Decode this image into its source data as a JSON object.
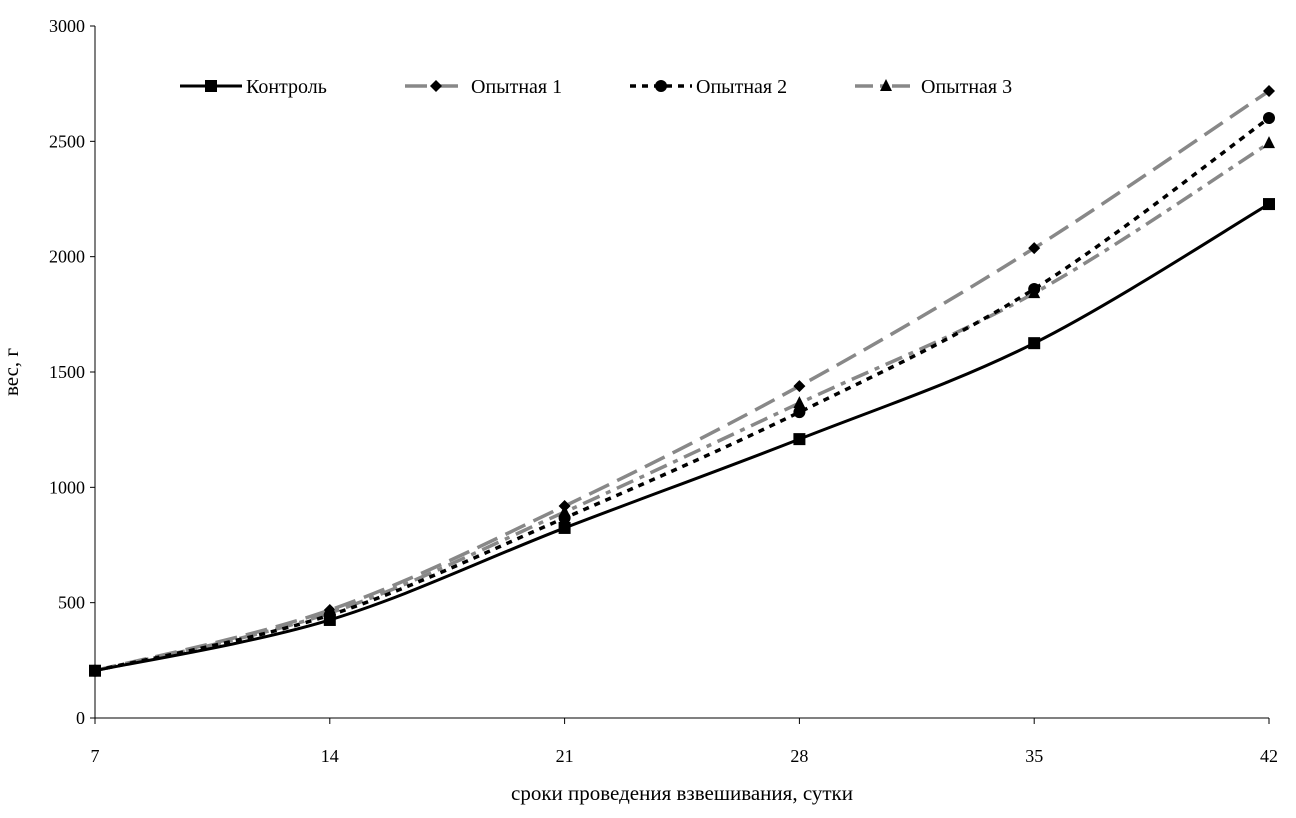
{
  "chart_data": {
    "type": "line",
    "title": "",
    "xlabel": "сроки проведения взвешивания, сутки",
    "ylabel": "вес, г",
    "x": [
      7,
      14,
      21,
      28,
      35,
      42
    ],
    "xlim": [
      7,
      42
    ],
    "ylim": [
      0,
      3000
    ],
    "yticks": [
      0,
      500,
      1000,
      1500,
      2000,
      2500,
      3000
    ],
    "xticks": [
      7,
      14,
      21,
      28,
      35,
      42
    ],
    "grid": false,
    "legend_position": "top",
    "series": [
      {
        "name": "Контроль",
        "marker": "square",
        "style": "solid",
        "color": "#000000",
        "values": [
          205,
          425,
          824,
          1209,
          1625,
          2228
        ]
      },
      {
        "name": "Опытная 1",
        "marker": "diamond",
        "style": "long-dash",
        "color": "#888888",
        "values": [
          205,
          468,
          919,
          1439,
          2037,
          2718
        ]
      },
      {
        "name": "Опытная 2",
        "marker": "circle",
        "style": "short-dash",
        "color": "#000000",
        "values": [
          205,
          446,
          867,
          1326,
          1860,
          2601
        ]
      },
      {
        "name": "Опытная 3",
        "marker": "triangle",
        "style": "dash-dot",
        "color": "#888888",
        "values": [
          205,
          455,
          893,
          1365,
          1842,
          2492
        ]
      }
    ]
  }
}
